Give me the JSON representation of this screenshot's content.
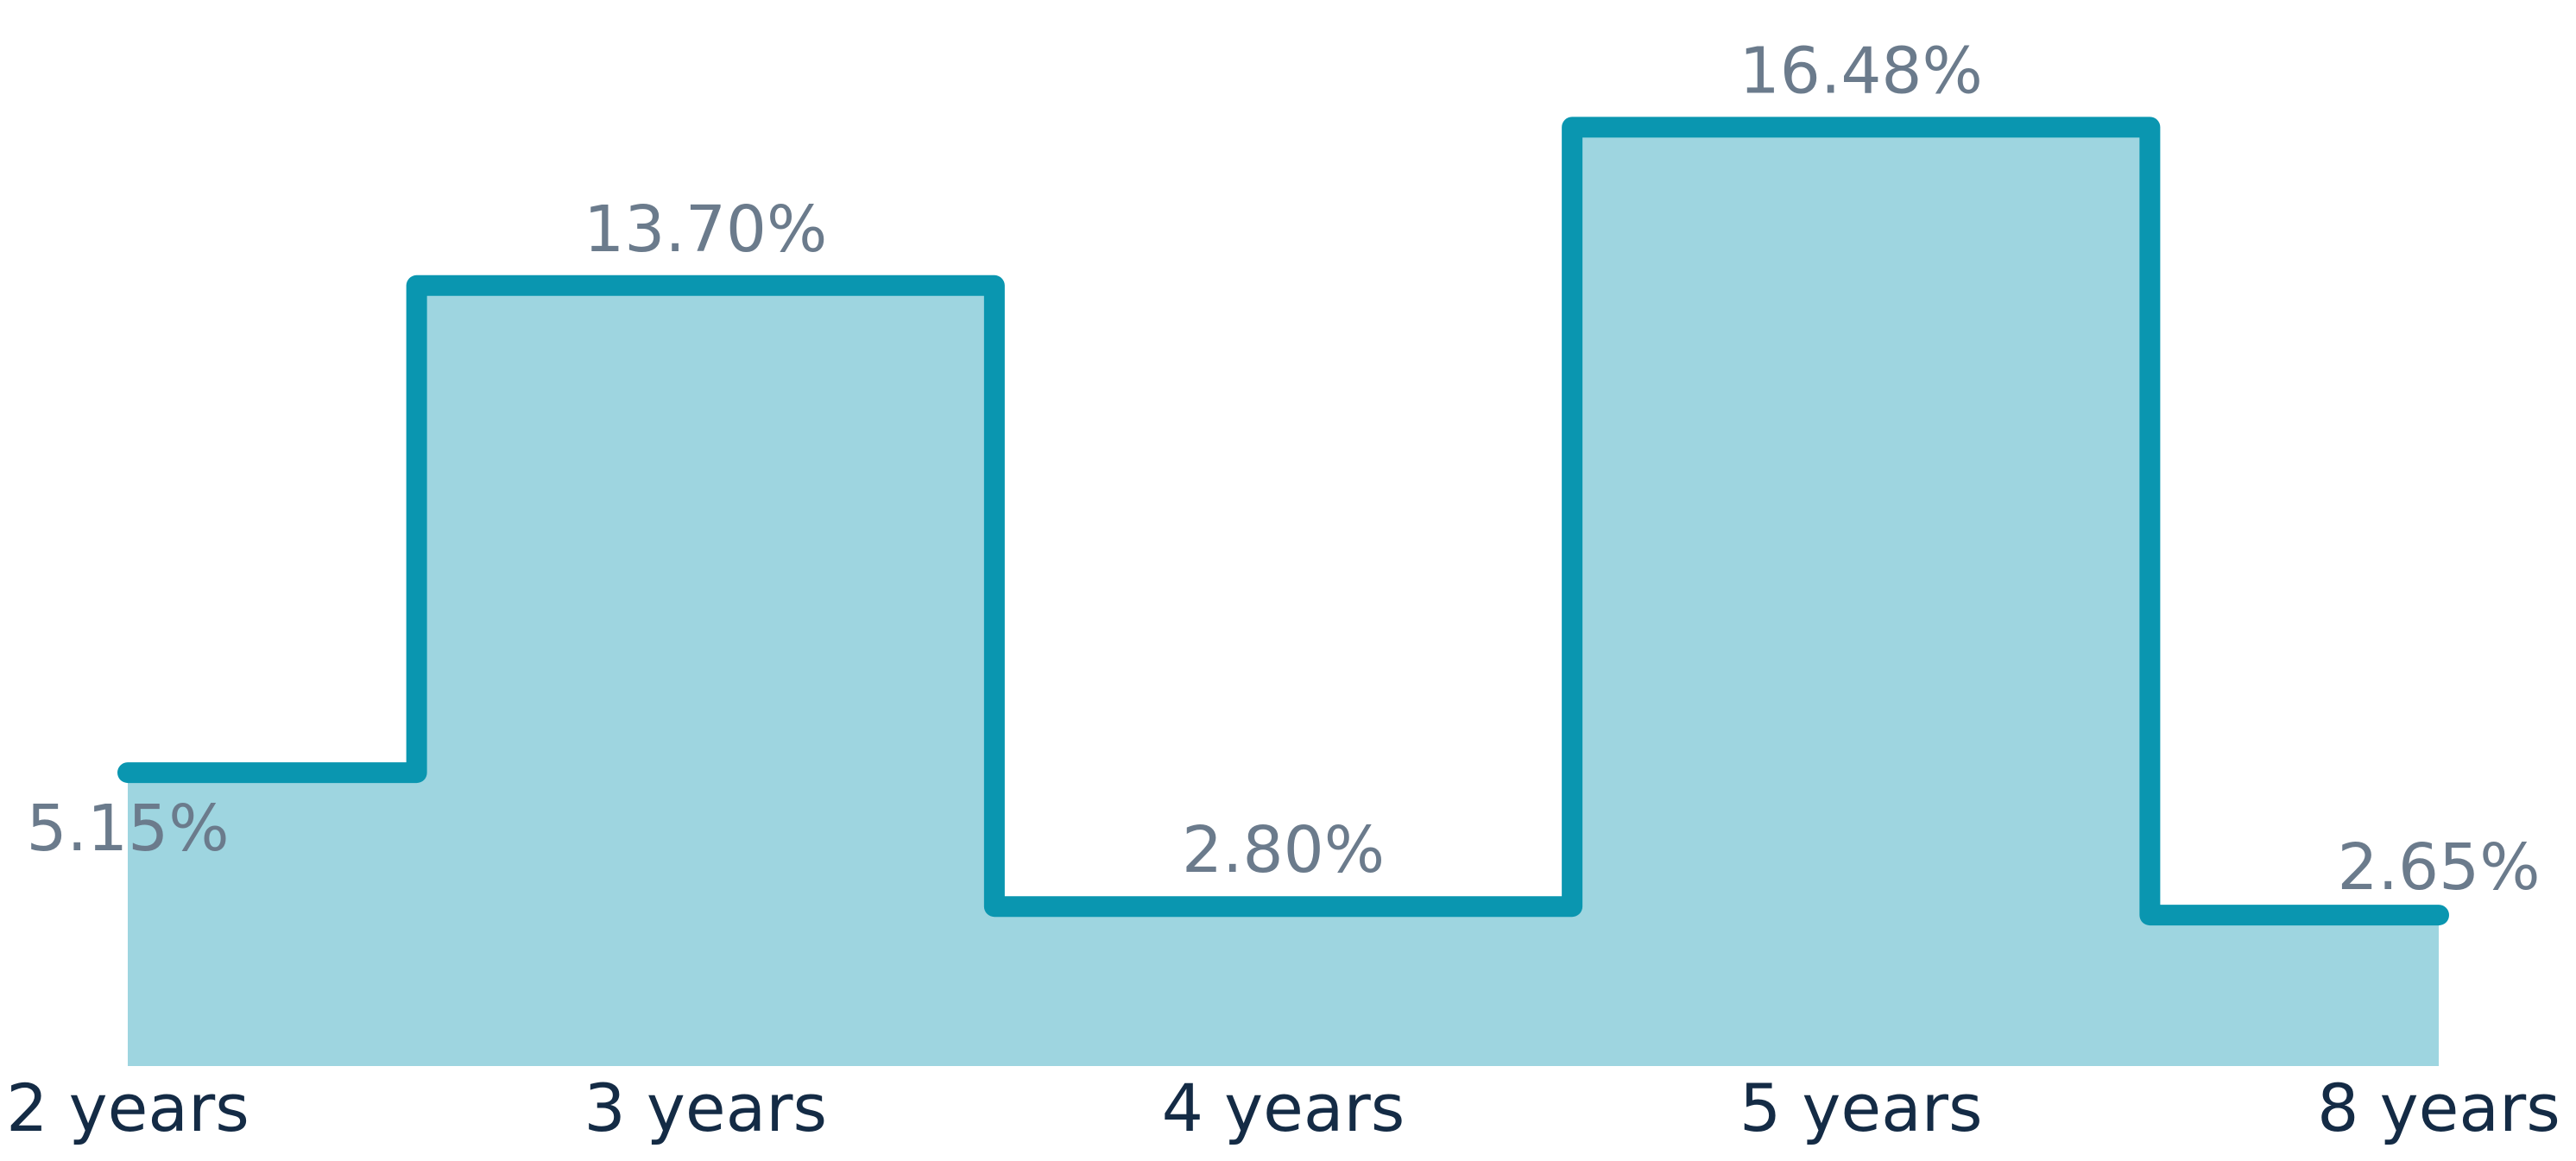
{
  "chart_data": {
    "type": "area",
    "interpolation": "step-middle",
    "categories": [
      "2 years",
      "3 years",
      "4 years",
      "5 years",
      "8 years"
    ],
    "values": [
      5.15,
      13.7,
      2.8,
      16.48,
      2.65
    ],
    "value_labels": [
      "5.15%",
      "13.70%",
      "2.80%",
      "16.48%",
      "2.65%"
    ],
    "title": "",
    "xlabel": "",
    "ylabel": "",
    "ylim": [
      0,
      17.5
    ],
    "grid": false,
    "legend": "none",
    "colors": {
      "line": "#0a96b0",
      "fill": "#9ed5e0",
      "data_label": "#6b7b8c",
      "tick_label": "#142b45"
    }
  }
}
